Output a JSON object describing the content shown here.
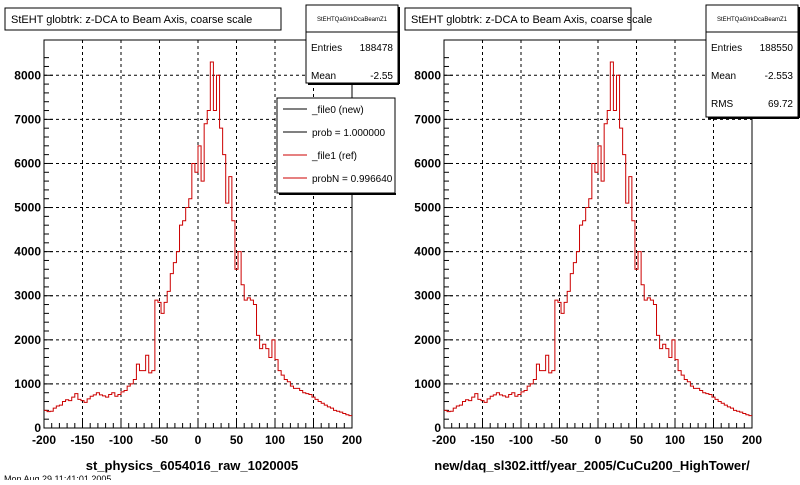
{
  "panels": [
    {
      "title": "StEHT globtrk: z-DCA to Beam Axis, coarse scale",
      "xlabel": "st_physics_6054016_raw_1020005",
      "stats": {
        "name": "StEHTQaGlrkDcaBeamZ1",
        "rows": [
          {
            "label": "Entries",
            "value": "188478"
          },
          {
            "label": "Mean",
            "value": "-2.55"
          }
        ]
      },
      "legend": {
        "entries": [
          {
            "label": "_file0 (new)",
            "color": "#000000"
          },
          {
            "label": "prob = 1.000000",
            "color": "#000000"
          },
          {
            "label": "_file1 (ref)",
            "color": "#cc0000"
          },
          {
            "label": "probN = 0.996640",
            "color": "#cc0000"
          }
        ]
      }
    },
    {
      "title": "StEHT globtrk: z-DCA to Beam Axis, coarse scale",
      "xlabel": "new/daq_sl302.ittf/year_2005/CuCu200_HighTower/",
      "stats": {
        "name": "StEHTQaGlrkDcaBeamZ1",
        "rows": [
          {
            "label": "Entries",
            "value": "188550"
          },
          {
            "label": "Mean",
            "value": "-2.553"
          },
          {
            "label": "RMS",
            "value": "69.72"
          }
        ]
      },
      "legend": null
    }
  ],
  "footer_text": "Mon Aug 29 11:41:01 2005",
  "chart_data": [
    {
      "type": "histogram",
      "title": "StEHT globtrk: z-DCA to Beam Axis, coarse scale",
      "xlabel": "st_physics_6054016_raw_1020005",
      "ylabel": "",
      "xlim": [
        -200,
        200
      ],
      "ylim": [
        0,
        8800
      ],
      "xticks": [
        -200,
        -150,
        -100,
        -50,
        0,
        50,
        100,
        150,
        200
      ],
      "yticks": [
        0,
        1000,
        2000,
        3000,
        4000,
        5000,
        6000,
        7000,
        8000
      ],
      "grid": true,
      "bin_width": 4,
      "line_color": "#cc0000",
      "series": [
        {
          "name": "_file1 (ref)",
          "values": [
            400,
            370,
            380,
            450,
            500,
            520,
            600,
            640,
            620,
            700,
            780,
            650,
            620,
            580,
            660,
            720,
            750,
            800,
            750,
            730,
            700,
            760,
            800,
            720,
            760,
            820,
            850,
            950,
            1000,
            1100,
            1450,
            1300,
            1300,
            1650,
            1250,
            1300,
            2900,
            2850,
            2600,
            2850,
            3100,
            3500,
            3750,
            4000,
            4600,
            4700,
            5000,
            5200,
            6000,
            5800,
            6400,
            5600,
            6900,
            7200,
            8300,
            7200,
            8000,
            6800,
            6200,
            5100,
            5700,
            4700,
            3600,
            4000,
            3250,
            2900,
            2950,
            2900,
            2800,
            2100,
            1800,
            1900,
            1800,
            1600,
            2000,
            1550,
            1300,
            1200,
            1100,
            1050,
            950,
            900,
            900,
            850,
            800,
            780,
            760,
            700,
            650,
            600,
            560,
            520,
            480,
            450,
            400,
            380,
            360,
            330,
            300,
            280
          ]
        }
      ]
    },
    {
      "type": "histogram",
      "title": "StEHT globtrk: z-DCA to Beam Axis, coarse scale",
      "xlabel": "new/daq_sl302.ittf/year_2005/CuCu200_HighTower/",
      "ylabel": "",
      "xlim": [
        -200,
        200
      ],
      "ylim": [
        0,
        8800
      ],
      "xticks": [
        -200,
        -150,
        -100,
        -50,
        0,
        50,
        100,
        150,
        200
      ],
      "yticks": [
        0,
        1000,
        2000,
        3000,
        4000,
        5000,
        6000,
        7000,
        8000
      ],
      "grid": true,
      "bin_width": 4,
      "line_color": "#cc0000",
      "series": [
        {
          "name": "",
          "values": [
            400,
            370,
            380,
            450,
            500,
            520,
            600,
            640,
            620,
            700,
            780,
            650,
            620,
            580,
            660,
            720,
            750,
            800,
            750,
            730,
            700,
            760,
            800,
            720,
            760,
            820,
            850,
            950,
            1000,
            1100,
            1450,
            1300,
            1300,
            1650,
            1250,
            1300,
            2900,
            2850,
            2600,
            2850,
            3100,
            3500,
            3750,
            4000,
            4600,
            4700,
            5000,
            5200,
            6000,
            5800,
            6400,
            5600,
            6900,
            7200,
            8300,
            7200,
            8000,
            6800,
            6200,
            5100,
            5700,
            4700,
            3600,
            4000,
            3250,
            2900,
            2950,
            2900,
            2800,
            2100,
            1800,
            1900,
            1800,
            1600,
            2000,
            1550,
            1300,
            1200,
            1100,
            1050,
            950,
            900,
            900,
            850,
            800,
            780,
            760,
            700,
            650,
            600,
            560,
            520,
            480,
            450,
            400,
            380,
            360,
            330,
            300,
            280
          ]
        }
      ]
    }
  ]
}
